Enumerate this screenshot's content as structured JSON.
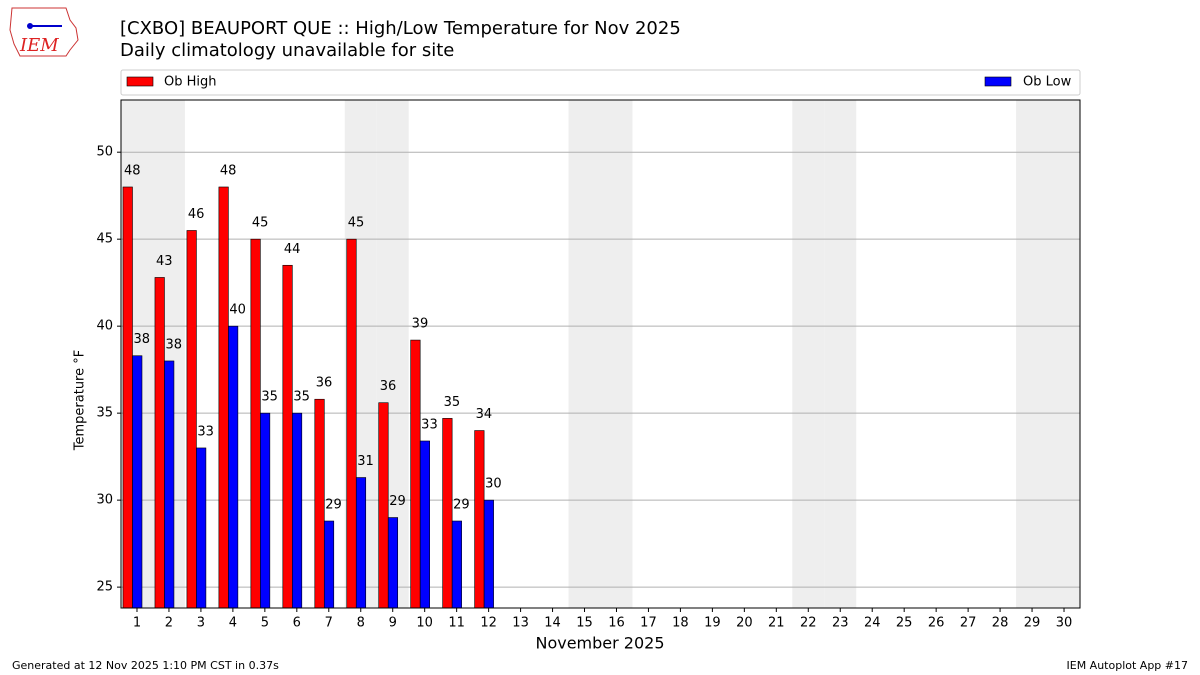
{
  "header": {
    "logo": "IEM"
  },
  "chart_data": {
    "type": "bar",
    "title": "[CXBO] BEAUPORT  QUE :: High/Low Temperature for Nov 2025",
    "subtitle": "Daily climatology unavailable for site",
    "x_label": "November 2025",
    "y_label": "Temperature °F",
    "categories": [
      "1",
      "2",
      "3",
      "4",
      "5",
      "6",
      "7",
      "8",
      "9",
      "10",
      "11",
      "12",
      "13",
      "14",
      "15",
      "16",
      "17",
      "18",
      "19",
      "20",
      "21",
      "22",
      "23",
      "24",
      "25",
      "26",
      "27",
      "28",
      "29",
      "30"
    ],
    "shaded_categories": [
      "1",
      "2",
      "8",
      "9",
      "15",
      "16",
      "22",
      "23",
      "29",
      "30"
    ],
    "series": [
      {
        "name": "Ob High",
        "color": "#ff0000",
        "values": [
          48,
          42.8,
          45.5,
          48,
          45,
          43.5,
          35.8,
          45,
          35.6,
          39.2,
          34.7,
          34,
          null,
          null,
          null,
          null,
          null,
          null,
          null,
          null,
          null,
          null,
          null,
          null,
          null,
          null,
          null,
          null,
          null,
          null
        ],
        "value_labels": [
          "48",
          "43",
          "46",
          "48",
          "45",
          "44",
          "36",
          "45",
          "36",
          "39",
          "35",
          "34",
          null,
          null,
          null,
          null,
          null,
          null,
          null,
          null,
          null,
          null,
          null,
          null,
          null,
          null,
          null,
          null,
          null,
          null
        ]
      },
      {
        "name": "Ob Low",
        "color": "#0000ff",
        "values": [
          38.3,
          38,
          33,
          40,
          35,
          35,
          28.8,
          31.3,
          29,
          33.4,
          28.8,
          30,
          null,
          null,
          null,
          null,
          null,
          null,
          null,
          null,
          null,
          null,
          null,
          null,
          null,
          null,
          null,
          null,
          null,
          null
        ],
        "value_labels": [
          "38",
          "38",
          "33",
          "40",
          "35",
          "35",
          "29",
          "31",
          "29",
          "33",
          "29",
          "30",
          null,
          null,
          null,
          null,
          null,
          null,
          null,
          null,
          null,
          null,
          null,
          null,
          null,
          null,
          null,
          null,
          null,
          null
        ]
      }
    ],
    "ylim": [
      23.8,
      53
    ],
    "yticks": [
      25,
      30,
      35,
      40,
      45,
      50
    ],
    "grid": true
  },
  "footer": {
    "left": "Generated at 12 Nov 2025 1:10 PM CST in 0.37s",
    "right": "IEM Autoplot App #17"
  }
}
